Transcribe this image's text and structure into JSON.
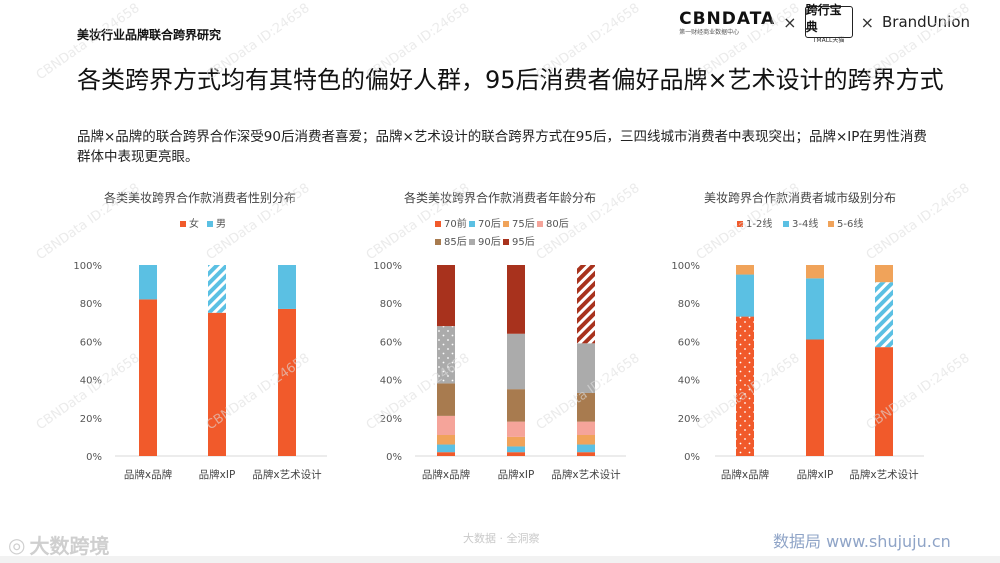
{
  "header": {
    "report_title": "美妆行业品牌联合跨界研究",
    "logos": {
      "cbn_main": "CBNDATA",
      "cbn_sub": "第一财经商业数据中心",
      "times": "×",
      "tmall_main": "跨行宝典",
      "tmall_sub": "TMALL天猫",
      "brand_union": "BrandUnion"
    }
  },
  "page_title": "各类跨界方式均有其特色的偏好人群，95后消费者偏好品牌×艺术设计的跨界方式",
  "description": "品牌×品牌的联合跨界合作深受90后消费者喜爱；品牌×艺术设计的联合跨界方式在95后，三四线城市消费者中表现突出；品牌×IP在男性消费群体中表现更亮眼。",
  "footer": {
    "left_brand": "大数跨境",
    "mid_text": "大数据 · 全洞察",
    "right_site": "数据局  www.shujuju.cn",
    "watermark": "CBNData ID:24658"
  },
  "colors": {
    "orange": "#F15A2B",
    "blue": "#5BC0E3",
    "light_orange": "#F0A35A",
    "pink": "#F5A49A",
    "brown": "#A87B4F",
    "gray": "#ABABAB",
    "dark_red": "#A8321D"
  },
  "chart_data": [
    {
      "type": "bar",
      "stacked": true,
      "title": "各类美妆跨界合作款消费者性别分布",
      "categories": [
        "品牌x品牌",
        "品牌xIP",
        "品牌x艺术设计"
      ],
      "y_ticks": [
        "0%",
        "20%",
        "40%",
        "60%",
        "80%",
        "100%"
      ],
      "ylim": [
        0,
        100
      ],
      "legend_position": "top",
      "highlight": {
        "category_index": 1,
        "series_index": 1
      },
      "series": [
        {
          "name": "女",
          "color": "#F15A2B",
          "values": [
            82,
            75,
            77
          ]
        },
        {
          "name": "男",
          "color": "#5BC0E3",
          "values": [
            18,
            25,
            23
          ]
        }
      ]
    },
    {
      "type": "bar",
      "stacked": true,
      "title": "各类美妆跨界合作款消费者年龄分布",
      "categories": [
        "品牌x品牌",
        "品牌xIP",
        "品牌x艺术设计"
      ],
      "y_ticks": [
        "0%",
        "20%",
        "40%",
        "60%",
        "80%",
        "100%"
      ],
      "ylim": [
        0,
        100
      ],
      "legend_position": "top",
      "highlight": {
        "category_index": 2,
        "series_index": 6,
        "dotted": {
          "category_index": 0,
          "series_index": 5
        }
      },
      "series": [
        {
          "name": "70前",
          "color": "#F15A2B",
          "values": [
            2,
            2,
            2
          ]
        },
        {
          "name": "70后",
          "color": "#5BC0E3",
          "values": [
            4,
            3,
            4
          ]
        },
        {
          "name": "75后",
          "color": "#F0A35A",
          "values": [
            5,
            5,
            5
          ]
        },
        {
          "name": "80后",
          "color": "#F5A49A",
          "values": [
            10,
            8,
            7
          ]
        },
        {
          "name": "85后",
          "color": "#A87B4F",
          "values": [
            17,
            17,
            15
          ]
        },
        {
          "name": "90后",
          "color": "#ABABAB",
          "values": [
            30,
            29,
            26
          ]
        },
        {
          "name": "95后",
          "color": "#A8321D",
          "values": [
            32,
            36,
            41
          ]
        }
      ]
    },
    {
      "type": "bar",
      "stacked": true,
      "title": "美妆跨界合作款消费者城市级别分布",
      "categories": [
        "品牌x品牌",
        "品牌xIP",
        "品牌x艺术设计"
      ],
      "y_ticks": [
        "0%",
        "20%",
        "40%",
        "60%",
        "80%",
        "100%"
      ],
      "ylim": [
        0,
        100
      ],
      "legend_position": "top",
      "highlight": {
        "category_index": 2,
        "series_index": 1,
        "dotted": {
          "category_index": 0,
          "series_index": 0
        }
      },
      "series": [
        {
          "name": "1-2线",
          "color": "#F15A2B",
          "values": [
            73,
            61,
            57
          ]
        },
        {
          "name": "3-4线",
          "color": "#5BC0E3",
          "values": [
            22,
            32,
            34
          ]
        },
        {
          "name": "5-6线",
          "color": "#F0A35A",
          "values": [
            5,
            7,
            9
          ]
        }
      ]
    }
  ]
}
